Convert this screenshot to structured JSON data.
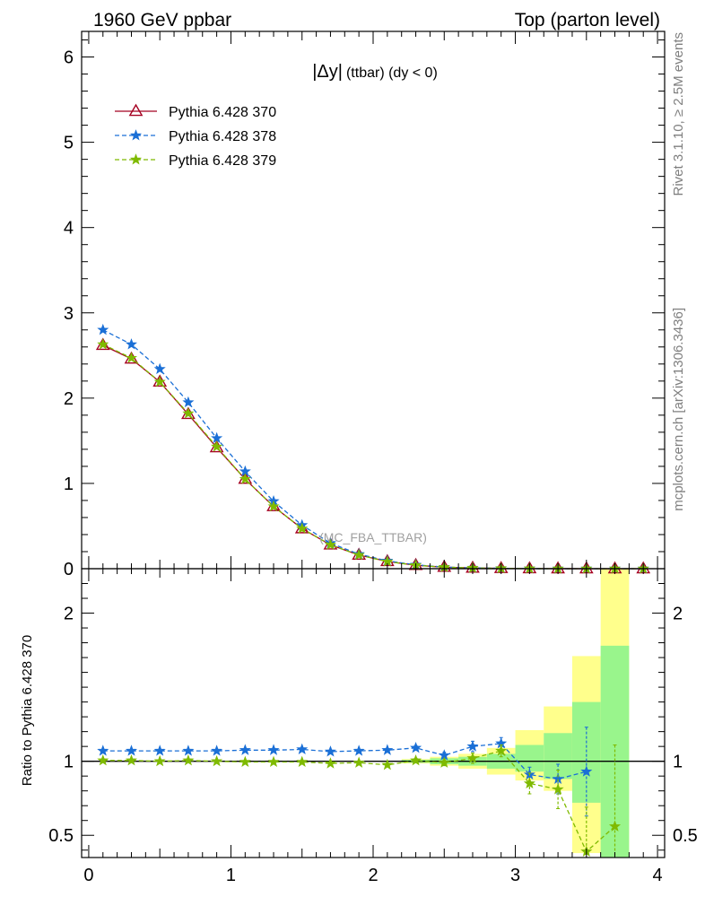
{
  "header": {
    "left": "1960 GeV ppbar",
    "right": "Top (parton level)"
  },
  "side": {
    "rivet": "Rivet 3.1.10, ≥ 2.5M events",
    "mcplots": "mcplots.cern.ch [arXiv:1306.3436]"
  },
  "chart_data": [
    {
      "type": "line",
      "panel": "main",
      "title": "|Δy| (ttbar) (dy < 0)",
      "title_parts": {
        "obs": "|Δy|",
        "detail": "(ttbar) (dy < 0)"
      },
      "watermark": "(MC_FBA_TTBAR)",
      "xlim": [
        -0.05,
        4.05
      ],
      "ylim": [
        0,
        6.3
      ],
      "yticks": [
        0,
        1,
        2,
        3,
        4,
        5,
        6
      ],
      "yticklabels": [
        "0",
        "1",
        "2",
        "3",
        "4",
        "5",
        "6"
      ],
      "legend_position": "top-left",
      "x": [
        0.1,
        0.3,
        0.5,
        0.7,
        0.9,
        1.1,
        1.3,
        1.5,
        1.7,
        1.9,
        2.1,
        2.3,
        2.5,
        2.7,
        2.9,
        3.1,
        3.3,
        3.5,
        3.7,
        3.9
      ],
      "series": [
        {
          "name": "Pythia 6.428 370",
          "color": "#a50021",
          "marker": "triangle",
          "dash": "solid",
          "values": [
            2.62,
            2.46,
            2.19,
            1.81,
            1.42,
            1.05,
            0.73,
            0.47,
            0.28,
            0.16,
            0.085,
            0.04,
            0.018,
            0.008,
            0.0035,
            0.0015,
            0.0006,
            0.0002,
            5e-05,
            0.0
          ]
        },
        {
          "name": "Pythia 6.428 378",
          "color": "#1a6fd6",
          "marker": "star",
          "dash": "dashed",
          "values": [
            2.8,
            2.63,
            2.34,
            1.95,
            1.53,
            1.14,
            0.79,
            0.51,
            0.3,
            0.17,
            0.092,
            0.045,
            0.019,
            0.009,
            0.004,
            0.0014,
            0.0005,
            0.0002,
            5e-05,
            0.0
          ]
        },
        {
          "name": "Pythia 6.428 379",
          "color": "#7fba00",
          "marker": "star",
          "dash": "dashed",
          "values": [
            2.63,
            2.47,
            2.19,
            1.82,
            1.43,
            1.05,
            0.73,
            0.47,
            0.28,
            0.16,
            0.083,
            0.04,
            0.018,
            0.008,
            0.0037,
            0.0013,
            0.0005,
            0.0001,
            3e-05,
            0.0
          ]
        }
      ]
    },
    {
      "type": "line",
      "panel": "ratio",
      "ylabel": "Ratio to Pythia 6.428 370",
      "xlim": [
        -0.05,
        4.05
      ],
      "ylim": [
        0.35,
        2.3
      ],
      "xticks": [
        0,
        1,
        2,
        3,
        4
      ],
      "xticklabels": [
        "0",
        "1",
        "2",
        "3",
        "4"
      ],
      "yticks": [
        0.5,
        1,
        2
      ],
      "yticklabels": [
        "0.5",
        "1",
        "2"
      ],
      "reference": 1.0,
      "bands": {
        "bins": [
          [
            2.2,
            2.4
          ],
          [
            2.4,
            2.6
          ],
          [
            2.6,
            2.8
          ],
          [
            2.8,
            3.0
          ],
          [
            3.0,
            3.2
          ],
          [
            3.2,
            3.4
          ],
          [
            3.4,
            3.6
          ],
          [
            3.6,
            3.8
          ]
        ],
        "outer": [
          [
            0.985,
            1.015
          ],
          [
            0.97,
            1.03
          ],
          [
            0.95,
            1.05
          ],
          [
            0.91,
            1.09
          ],
          [
            0.87,
            1.21
          ],
          [
            0.8,
            1.37
          ],
          [
            0.38,
            1.71
          ],
          [
            0.35,
            2.3
          ]
        ],
        "inner": [
          [
            0.99,
            1.01
          ],
          [
            0.98,
            1.02
          ],
          [
            0.97,
            1.03
          ],
          [
            0.95,
            1.05
          ],
          [
            0.93,
            1.11
          ],
          [
            0.88,
            1.19
          ],
          [
            0.72,
            1.4
          ],
          [
            0.35,
            1.78
          ]
        ],
        "outer_color": "#ffff8c",
        "inner_color": "#99f58c"
      },
      "series": [
        {
          "name": "Pythia 6.428 378",
          "color": "#1a6fd6",
          "dash": "dashed",
          "x": [
            0.1,
            0.3,
            0.5,
            0.7,
            0.9,
            1.1,
            1.3,
            1.5,
            1.7,
            1.9,
            2.1,
            2.3,
            2.5,
            2.7,
            2.9,
            3.1,
            3.3,
            3.5
          ],
          "values": [
            1.07,
            1.07,
            1.07,
            1.07,
            1.07,
            1.075,
            1.075,
            1.08,
            1.065,
            1.07,
            1.075,
            1.09,
            1.04,
            1.1,
            1.12,
            0.91,
            0.88,
            0.93
          ],
          "errors": [
            0,
            0,
            0,
            0,
            0,
            0,
            0,
            0,
            0,
            0,
            0.01,
            0.015,
            0.02,
            0.035,
            0.04,
            0.05,
            0.1,
            0.3
          ]
        },
        {
          "name": "Pythia 6.428 379",
          "color": "#7fba00",
          "dash": "dashed",
          "x": [
            0.1,
            0.3,
            0.5,
            0.7,
            0.9,
            1.1,
            1.3,
            1.5,
            1.7,
            1.9,
            2.1,
            2.3,
            2.5,
            2.7,
            2.9,
            3.1,
            3.3,
            3.5,
            3.7
          ],
          "values": [
            1.005,
            1.005,
            1.0,
            1.005,
            1.0,
            0.995,
            0.995,
            0.995,
            0.985,
            0.99,
            0.975,
            1.005,
            0.99,
            1.02,
            1.07,
            0.85,
            0.81,
            0.39,
            0.56
          ],
          "errors": [
            0,
            0,
            0,
            0,
            0,
            0,
            0,
            0,
            0,
            0,
            0.01,
            0.015,
            0.02,
            0.035,
            0.04,
            0.07,
            0.13,
            0.3,
            0.55
          ]
        }
      ]
    }
  ]
}
